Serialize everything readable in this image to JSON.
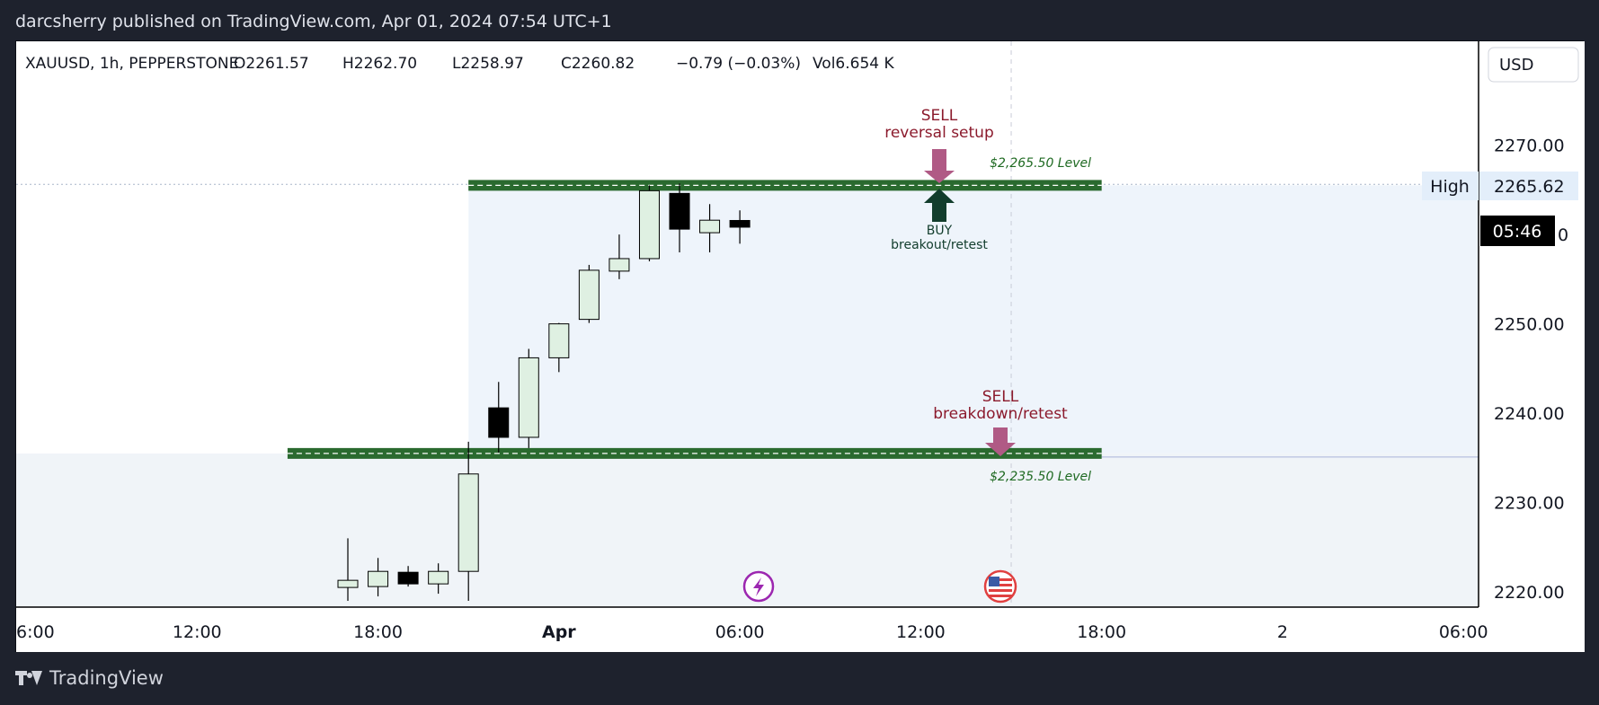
{
  "header": {
    "published": "darcsherry published on TradingView.com, Apr 01, 2024 07:54 UTC+1"
  },
  "legend": {
    "symbol": "XAUUSD, 1h, PEPPERSTONE",
    "open": "O2261.57",
    "high": "H2262.70",
    "low": "L2258.97",
    "close": "C2260.82",
    "change": "−0.79 (−0.03%)",
    "volume": "Vol6.654 K"
  },
  "price_axis": {
    "currency": "USD",
    "high_label": "High",
    "high_value": "2265.62",
    "countdown": "05:46"
  },
  "annotations": {
    "sell_top_1": "SELL",
    "sell_top_2": "reversal setup",
    "buy_1": "BUY",
    "buy_2": "breakout/retest",
    "sell_bottom_1": "SELL",
    "sell_bottom_2": "breakdown/retest",
    "level_top": "$2,265.50 Level",
    "level_bottom": "$2,235.50 Level"
  },
  "colors": {
    "level_line": "#2a6a2f",
    "sell_arrow": "#b05a85",
    "buy_arrow": "#123d2c",
    "sell_text": "#8b1a2c",
    "buy_text": "#123d2c",
    "bull_fill": "#dff0e2",
    "bear_fill": "#000000",
    "zone_fill": "#eef4fb"
  },
  "brand": "TradingView",
  "chart_data": {
    "type": "candlestick",
    "title": "XAUUSD, 1h, PEPPERSTONE",
    "ylim": [
      2218.3,
      2277.7
    ],
    "y_ticks": [
      2270.0,
      2260.0,
      2250.0,
      2240.0,
      2230.0,
      2220.0
    ],
    "y_tick_labels": [
      "2270.00",
      "2260.00",
      "2250.00",
      "2240.00",
      "2230.00",
      "2220.00"
    ],
    "x_tick_labels": [
      "6:00",
      "12:00",
      "18:00",
      "Apr",
      "06:00",
      "12:00",
      "18:00",
      "2",
      "06:00"
    ],
    "x_ticks_hours": [
      6,
      12,
      18,
      24,
      30,
      36,
      42,
      48,
      54
    ],
    "xlim_hours": [
      6,
      54.5
    ],
    "candles": [
      {
        "t": 17,
        "o": 2220.5,
        "h": 2226.0,
        "l": 2219.0,
        "c": 2221.3
      },
      {
        "t": 18,
        "o": 2220.6,
        "h": 2223.8,
        "l": 2219.5,
        "c": 2222.3
      },
      {
        "t": 19,
        "o": 2222.2,
        "h": 2222.9,
        "l": 2220.6,
        "c": 2220.9
      },
      {
        "t": 20,
        "o": 2220.9,
        "h": 2223.2,
        "l": 2219.8,
        "c": 2222.3
      },
      {
        "t": 21,
        "o": 2222.3,
        "h": 2236.8,
        "l": 2219.0,
        "c": 2233.2
      },
      {
        "t": 22,
        "o": 2240.6,
        "h": 2243.5,
        "l": 2235.6,
        "c": 2237.3
      },
      {
        "t": 23,
        "o": 2237.3,
        "h": 2247.2,
        "l": 2236.1,
        "c": 2246.2
      },
      {
        "t": 24,
        "o": 2246.2,
        "h": 2250.1,
        "l": 2244.6,
        "c": 2250.0
      },
      {
        "t": 25,
        "o": 2250.5,
        "h": 2256.6,
        "l": 2250.1,
        "c": 2256.0
      },
      {
        "t": 26,
        "o": 2255.9,
        "h": 2260.0,
        "l": 2255.0,
        "c": 2257.3
      },
      {
        "t": 27,
        "o": 2257.3,
        "h": 2265.5,
        "l": 2257.0,
        "c": 2264.9
      },
      {
        "t": 28,
        "o": 2264.6,
        "h": 2265.7,
        "l": 2258.0,
        "c": 2260.6
      },
      {
        "t": 29,
        "o": 2260.2,
        "h": 2263.4,
        "l": 2258.0,
        "c": 2261.6
      },
      {
        "t": 30,
        "o": 2261.57,
        "h": 2262.7,
        "l": 2258.97,
        "c": 2260.82
      }
    ],
    "levels": [
      {
        "price": 2265.5,
        "label": "$2,265.50 Level",
        "t_start": 21,
        "t_end": 42
      },
      {
        "price": 2235.5,
        "label": "$2,235.50 Level",
        "t_start": 15,
        "t_end": 42
      }
    ],
    "last_price": 2260.82,
    "session_high": 2265.62
  }
}
